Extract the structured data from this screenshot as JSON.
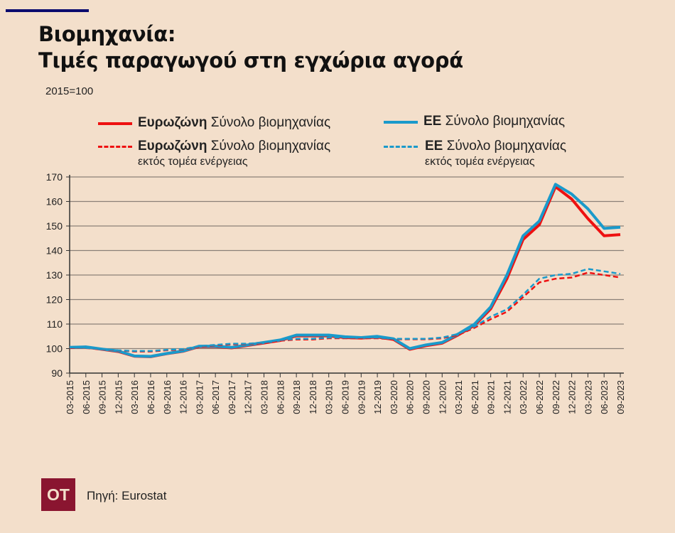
{
  "header": {
    "title_line1": "Βιομηχανία:",
    "title_line2": "Τιμές παραγωγού στη εγχώρια αγορά",
    "base_note": "2015=100"
  },
  "footer": {
    "logo_text": "OT",
    "source": "Πηγή: Eurostat"
  },
  "legend": [
    {
      "bold": "Ευρωζώνη",
      "text": " Σύνολο βιομηχανίας",
      "sub": ""
    },
    {
      "bold": "ΕΕ",
      "text": " Σύνολο βιομηχανίας",
      "sub": ""
    },
    {
      "bold": "Ευρωζώνη",
      "text": " Σύνολο βιομηχανίας",
      "sub": "εκτός τομέα ενέργειας"
    },
    {
      "bold": "ΕΕ",
      "text": " Σύνολο βιομηχανίας",
      "sub": "εκτός τομέα ενέργειας"
    }
  ],
  "chart_data": {
    "type": "line",
    "title": "Βιομηχανία: Τιμές παραγωγού στη εγχώρια αγορά",
    "ylabel": "2015=100",
    "ylim": [
      90,
      170
    ],
    "yticks": [
      90,
      100,
      110,
      120,
      130,
      140,
      150,
      160,
      170
    ],
    "grid": true,
    "legend_placement": "top",
    "x": [
      "03-2015",
      "06-2015",
      "09-2015",
      "12-2015",
      "03-2016",
      "06-2016",
      "09-2016",
      "12-2016",
      "03-2017",
      "06-2017",
      "09-2017",
      "12-2017",
      "03-2018",
      "06-2018",
      "09-2018",
      "12-2018",
      "03-2019",
      "06-2019",
      "09-2019",
      "12-2019",
      "03-2020",
      "06-2020",
      "09-2020",
      "12-2020",
      "03-2021",
      "06-2021",
      "09-2021",
      "12-2021",
      "03-2022",
      "06-2022",
      "09-2022",
      "12-2022",
      "03-2023",
      "06-2023",
      "09-2023"
    ],
    "series": [
      {
        "name": "Ευρωζώνη Σύνολο βιομηχανίας",
        "color": "#ee1111",
        "dash": false,
        "values": [
          100.4,
          100.6,
          99.7,
          98.8,
          96.9,
          96.7,
          97.9,
          98.9,
          100.8,
          100.8,
          100.3,
          101.3,
          102.3,
          103.3,
          105.2,
          105.2,
          105.2,
          104.5,
          104.3,
          104.7,
          103.7,
          99.7,
          101.2,
          102.2,
          105.6,
          109.5,
          116.2,
          128.5,
          144.5,
          150.5,
          166,
          161,
          153,
          146,
          146.5
        ]
      },
      {
        "name": "ΕΕ Σύνολο βιομηχανίας",
        "color": "#1a9acb",
        "dash": false,
        "values": [
          100.5,
          100.7,
          99.8,
          99,
          97,
          96.8,
          98,
          99,
          101,
          101,
          100.5,
          101.5,
          102.5,
          103.5,
          105.5,
          105.5,
          105.5,
          104.8,
          104.5,
          105,
          104,
          100,
          101.5,
          102.5,
          106,
          110,
          117,
          130,
          146,
          152,
          167,
          163,
          157,
          149,
          149.5
        ]
      },
      {
        "name": "Ευρωζώνη Σύνολο βιομηχανίας εκτός τομέα ενέργειας",
        "color": "#ee1111",
        "dash": true,
        "values": [
          100.4,
          100.2,
          99.7,
          99.2,
          98.8,
          98.8,
          99.3,
          99.6,
          100.8,
          101.3,
          101.7,
          101.8,
          102.3,
          103.2,
          103.7,
          103.7,
          104.2,
          104.2,
          104.2,
          104.2,
          103.8,
          103.8,
          103.8,
          104.2,
          105.6,
          108.5,
          112,
          115,
          121,
          127,
          128.5,
          129,
          131,
          130,
          129
        ]
      },
      {
        "name": "ΕΕ Σύνολο βιομηχανίας εκτός τομέα ενέργειας",
        "color": "#1a9acb",
        "dash": true,
        "values": [
          100.5,
          100.3,
          99.8,
          99.3,
          99,
          99,
          99.5,
          99.8,
          101,
          101.5,
          102,
          102,
          102.5,
          103.5,
          104,
          104,
          104.5,
          104.5,
          104.5,
          104.5,
          104,
          104,
          104,
          104.5,
          106,
          109,
          113,
          116,
          122,
          128.5,
          130,
          130.5,
          132.5,
          131.5,
          130.5
        ]
      }
    ]
  }
}
